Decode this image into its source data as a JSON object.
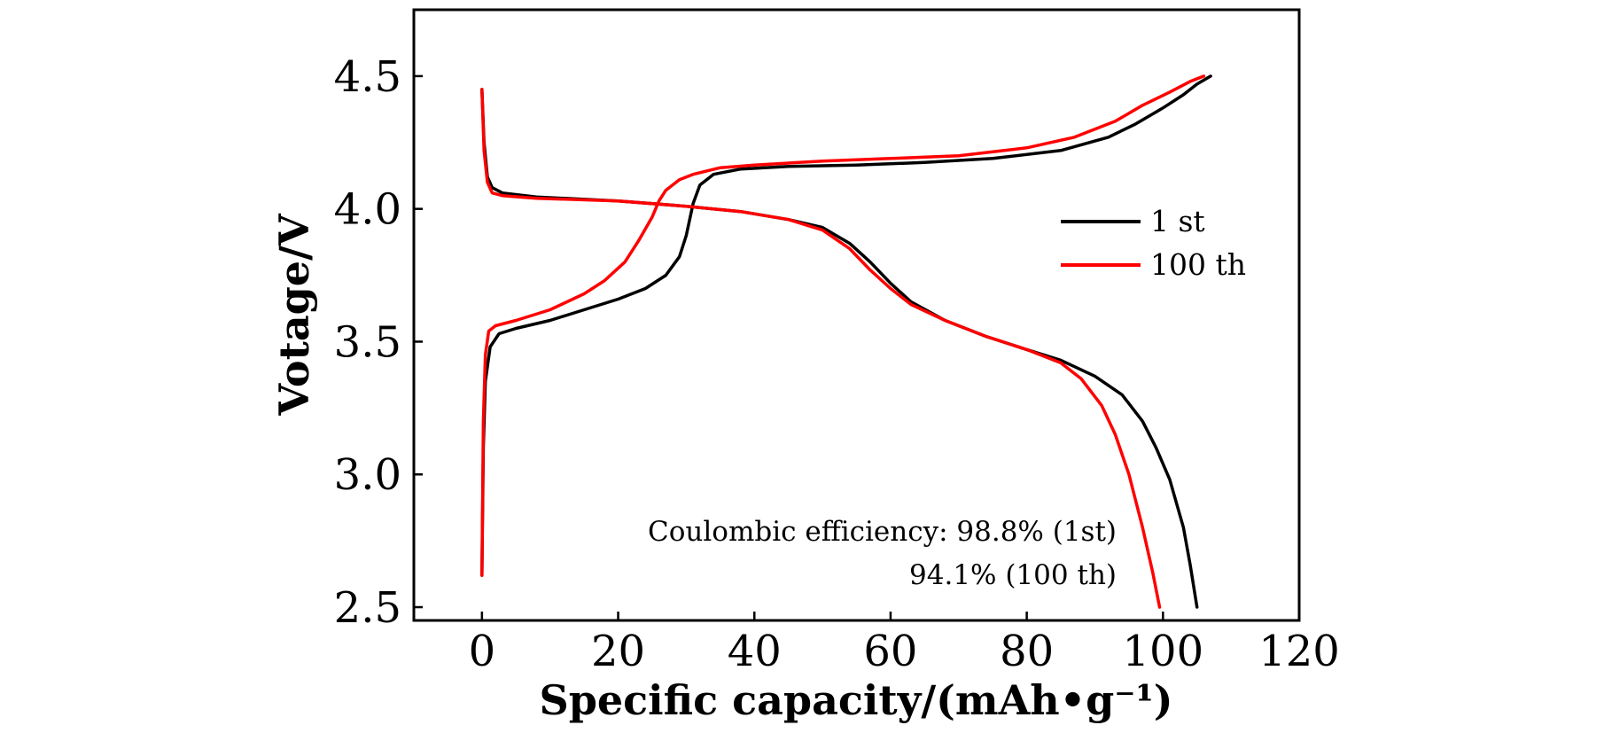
{
  "chart_data": {
    "type": "line",
    "xlabel": "Specific capacity/(mAh•g⁻¹)",
    "ylabel": "Votage/V",
    "xlim": [
      -10,
      120
    ],
    "ylim": [
      2.45,
      4.75
    ],
    "xticks": [
      0,
      20,
      40,
      60,
      80,
      100,
      120
    ],
    "xtick_labels": [
      "0",
      "20",
      "40",
      "60",
      "80",
      "100",
      "120"
    ],
    "yticks": [
      2.5,
      3.0,
      3.5,
      4.0,
      4.5
    ],
    "ytick_labels": [
      "2.5",
      "3.0",
      "3.5",
      "4.0",
      "4.5"
    ],
    "grid": false,
    "legend_position": "upper-right",
    "series": [
      {
        "name": "1 st",
        "color": "#000000",
        "segments": [
          [
            [
              0,
              2.62
            ],
            [
              0.2,
              3.1
            ],
            [
              0.5,
              3.35
            ],
            [
              1.2,
              3.48
            ],
            [
              2.5,
              3.53
            ],
            [
              5,
              3.55
            ],
            [
              10,
              3.58
            ],
            [
              15,
              3.62
            ],
            [
              20,
              3.66
            ],
            [
              24,
              3.7
            ],
            [
              27,
              3.75
            ],
            [
              29,
              3.82
            ],
            [
              30,
              3.9
            ],
            [
              31,
              4.02
            ],
            [
              32,
              4.09
            ],
            [
              34,
              4.13
            ],
            [
              38,
              4.15
            ],
            [
              45,
              4.16
            ],
            [
              55,
              4.165
            ],
            [
              65,
              4.175
            ],
            [
              75,
              4.19
            ],
            [
              85,
              4.22
            ],
            [
              92,
              4.27
            ],
            [
              96,
              4.32
            ],
            [
              100,
              4.38
            ],
            [
              103,
              4.43
            ],
            [
              105,
              4.47
            ],
            [
              107,
              4.5
            ]
          ],
          [
            [
              0,
              4.45
            ],
            [
              0.3,
              4.25
            ],
            [
              0.8,
              4.12
            ],
            [
              1.5,
              4.08
            ],
            [
              3,
              4.06
            ],
            [
              8,
              4.045
            ],
            [
              20,
              4.03
            ],
            [
              30,
              4.01
            ],
            [
              38,
              3.99
            ],
            [
              45,
              3.96
            ],
            [
              50,
              3.93
            ],
            [
              54,
              3.87
            ],
            [
              57,
              3.8
            ],
            [
              60,
              3.72
            ],
            [
              63,
              3.65
            ],
            [
              68,
              3.58
            ],
            [
              74,
              3.52
            ],
            [
              80,
              3.47
            ],
            [
              85,
              3.43
            ],
            [
              90,
              3.37
            ],
            [
              94,
              3.3
            ],
            [
              97,
              3.2
            ],
            [
              99,
              3.1
            ],
            [
              101,
              2.98
            ],
            [
              103,
              2.8
            ],
            [
              104,
              2.66
            ],
            [
              105,
              2.5
            ]
          ]
        ]
      },
      {
        "name": "100 th",
        "color": "#ff0000",
        "segments": [
          [
            [
              0,
              2.62
            ],
            [
              0.2,
              3.2
            ],
            [
              0.5,
              3.45
            ],
            [
              1,
              3.54
            ],
            [
              2,
              3.56
            ],
            [
              5,
              3.58
            ],
            [
              10,
              3.62
            ],
            [
              15,
              3.68
            ],
            [
              18,
              3.73
            ],
            [
              21,
              3.8
            ],
            [
              23,
              3.88
            ],
            [
              25,
              3.97
            ],
            [
              26,
              4.03
            ],
            [
              27,
              4.07
            ],
            [
              29,
              4.11
            ],
            [
              31,
              4.13
            ],
            [
              35,
              4.155
            ],
            [
              40,
              4.165
            ],
            [
              50,
              4.18
            ],
            [
              60,
              4.19
            ],
            [
              70,
              4.2
            ],
            [
              80,
              4.23
            ],
            [
              87,
              4.27
            ],
            [
              93,
              4.33
            ],
            [
              97,
              4.39
            ],
            [
              101,
              4.44
            ],
            [
              104,
              4.48
            ],
            [
              106,
              4.5
            ]
          ],
          [
            [
              0,
              4.45
            ],
            [
              0.3,
              4.22
            ],
            [
              0.8,
              4.1
            ],
            [
              1.5,
              4.06
            ],
            [
              3,
              4.05
            ],
            [
              8,
              4.04
            ],
            [
              20,
              4.03
            ],
            [
              30,
              4.01
            ],
            [
              38,
              3.99
            ],
            [
              45,
              3.96
            ],
            [
              50,
              3.92
            ],
            [
              54,
              3.85
            ],
            [
              57,
              3.77
            ],
            [
              60,
              3.7
            ],
            [
              63,
              3.64
            ],
            [
              68,
              3.58
            ],
            [
              74,
              3.52
            ],
            [
              80,
              3.47
            ],
            [
              85,
              3.42
            ],
            [
              88,
              3.36
            ],
            [
              91,
              3.26
            ],
            [
              93,
              3.15
            ],
            [
              95,
              3.0
            ],
            [
              97,
              2.8
            ],
            [
              98.5,
              2.63
            ],
            [
              99.5,
              2.5
            ]
          ]
        ]
      }
    ],
    "annotations": [
      "Coulombic efficiency: 98.8% (1st)",
      "94.1% (100 th)"
    ]
  }
}
